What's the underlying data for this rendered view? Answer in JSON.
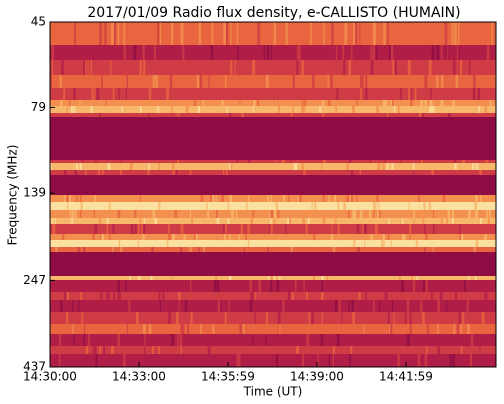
{
  "chart_data": {
    "type": "spectrogram",
    "title": "2017/01/09  Radio flux density, e-CALLISTO (HUMAIN)",
    "x_label": "Time (UT)",
    "y_label": "Frequency (MHz)",
    "xticks": [
      "14:30:00",
      "14:33:00",
      "14:35:59",
      "14:39:00",
      "14:41:59"
    ],
    "ylim": [
      437,
      45
    ],
    "yticks": [
      45,
      79,
      139,
      247,
      437
    ],
    "y_scale": "log"
  }
}
